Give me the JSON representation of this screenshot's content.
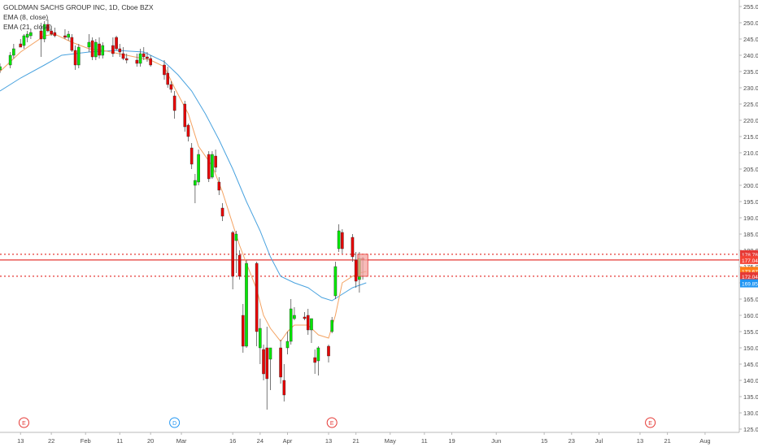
{
  "legend": {
    "title": "GOLDMAN SACHS GROUP INC, 1D, Cboe BZX",
    "ema_fast": "EMA (8, close)",
    "ema_slow": "EMA (21, close)"
  },
  "chart_data": {
    "type": "candlestick",
    "title": "GOLDMAN SACHS GROUP INC, 1D, Cboe BZX",
    "y_range": [
      126,
      257
    ],
    "y_ticks": [
      125,
      130,
      135,
      140,
      145,
      150,
      155,
      160,
      165,
      170,
      175,
      180,
      185,
      190,
      195,
      200,
      205,
      210,
      215,
      220,
      225,
      230,
      235,
      240,
      245,
      250,
      255
    ],
    "y_tick_labels": [
      "125.00",
      "130.00",
      "135.00",
      "140.00",
      "145.00",
      "150.00",
      "155.00",
      "160.00",
      "165.00",
      "170.00",
      "175.00",
      "180.00",
      "185.00",
      "190.00",
      "195.00",
      "200.00",
      "205.00",
      "210.00",
      "215.00",
      "220.00",
      "225.00",
      "230.00",
      "235.00",
      "240.00",
      "245.00",
      "250.00",
      "255.00"
    ],
    "x_tick_labels": [
      {
        "label": "13",
        "day": 0
      },
      {
        "label": "22",
        "day": 9
      },
      {
        "label": "Feb",
        "day": 19
      },
      {
        "label": "11",
        "day": 29
      },
      {
        "label": "20",
        "day": 38
      },
      {
        "label": "Mar",
        "day": 47
      },
      {
        "label": "16",
        "day": 62
      },
      {
        "label": "24",
        "day": 70
      },
      {
        "label": "Apr",
        "day": 78
      },
      {
        "label": "13",
        "day": 90
      },
      {
        "label": "21",
        "day": 98
      },
      {
        "label": "May",
        "day": 108
      },
      {
        "label": "11",
        "day": 118
      },
      {
        "label": "19",
        "day": 126
      },
      {
        "label": "Jun",
        "day": 139
      },
      {
        "label": "15",
        "day": 153
      },
      {
        "label": "23",
        "day": 161
      },
      {
        "label": "Jul",
        "day": 169
      },
      {
        "label": "13",
        "day": 181
      },
      {
        "label": "21",
        "day": 189
      },
      {
        "label": "Aug",
        "day": 200
      }
    ],
    "day_range": [
      -6,
      210
    ],
    "candles": [
      {
        "d": -6,
        "o": 235.5,
        "h": 237.5,
        "l": 234.5,
        "c": 236.5
      },
      {
        "d": -3,
        "o": 237.0,
        "h": 241.0,
        "l": 236.0,
        "c": 240.0
      },
      {
        "d": -2,
        "o": 240.0,
        "h": 243.5,
        "l": 239.0,
        "c": 242.0
      },
      {
        "d": 0,
        "o": 243.5,
        "h": 245.0,
        "l": 242.5,
        "c": 242.5
      },
      {
        "d": 1,
        "o": 243.0,
        "h": 246.5,
        "l": 242.0,
        "c": 246.0
      },
      {
        "d": 2,
        "o": 245.5,
        "h": 247.5,
        "l": 244.0,
        "c": 246.5
      },
      {
        "d": 3,
        "o": 246.0,
        "h": 248.0,
        "l": 245.0,
        "c": 247.0
      },
      {
        "d": 6,
        "o": 247.5,
        "h": 250.0,
        "l": 239.5,
        "c": 245.0
      },
      {
        "d": 7,
        "o": 245.0,
        "h": 250.5,
        "l": 244.0,
        "c": 249.5
      },
      {
        "d": 8,
        "o": 249.5,
        "h": 251.0,
        "l": 247.0,
        "c": 247.5
      },
      {
        "d": 9,
        "o": 247.5,
        "h": 249.0,
        "l": 246.0,
        "c": 246.5
      },
      {
        "d": 10,
        "o": 247.0,
        "h": 248.5,
        "l": 245.5,
        "c": 246.0
      },
      {
        "d": 13,
        "o": 246.0,
        "h": 248.0,
        "l": 245.0,
        "c": 245.5
      },
      {
        "d": 14,
        "o": 245.5,
        "h": 247.5,
        "l": 244.5,
        "c": 246.5
      },
      {
        "d": 15,
        "o": 245.5,
        "h": 246.5,
        "l": 241.0,
        "c": 241.5
      },
      {
        "d": 16,
        "o": 241.5,
        "h": 243.0,
        "l": 235.5,
        "c": 237.0
      },
      {
        "d": 17,
        "o": 237.0,
        "h": 243.5,
        "l": 236.0,
        "c": 242.5
      },
      {
        "d": 20,
        "o": 242.5,
        "h": 246.5,
        "l": 241.0,
        "c": 244.0
      },
      {
        "d": 21,
        "o": 244.5,
        "h": 245.5,
        "l": 238.5,
        "c": 239.5
      },
      {
        "d": 22,
        "o": 239.5,
        "h": 245.0,
        "l": 238.5,
        "c": 244.0
      },
      {
        "d": 23,
        "o": 243.5,
        "h": 245.5,
        "l": 239.0,
        "c": 240.0
      },
      {
        "d": 24,
        "o": 240.0,
        "h": 244.0,
        "l": 239.0,
        "c": 243.0
      },
      {
        "d": 27,
        "o": 243.0,
        "h": 245.5,
        "l": 239.5,
        "c": 240.5
      },
      {
        "d": 28,
        "o": 245.5,
        "h": 246.0,
        "l": 241.5,
        "c": 242.0
      },
      {
        "d": 29,
        "o": 242.0,
        "h": 243.5,
        "l": 239.5,
        "c": 241.0
      },
      {
        "d": 30,
        "o": 240.5,
        "h": 242.5,
        "l": 238.5,
        "c": 239.0
      },
      {
        "d": 31,
        "o": 239.0,
        "h": 240.5,
        "l": 237.5,
        "c": 238.5
      },
      {
        "d": 34,
        "o": 238.5,
        "h": 240.5,
        "l": 236.5,
        "c": 237.5
      },
      {
        "d": 35,
        "o": 237.5,
        "h": 242.0,
        "l": 236.5,
        "c": 240.5
      },
      {
        "d": 36,
        "o": 240.5,
        "h": 242.5,
        "l": 238.5,
        "c": 239.5
      },
      {
        "d": 37,
        "o": 239.5,
        "h": 241.0,
        "l": 238.0,
        "c": 239.0
      },
      {
        "d": 38,
        "o": 239.0,
        "h": 240.0,
        "l": 236.5,
        "c": 237.0
      },
      {
        "d": 42,
        "o": 237.0,
        "h": 238.5,
        "l": 232.5,
        "c": 234.0
      },
      {
        "d": 43,
        "o": 234.5,
        "h": 236.5,
        "l": 230.0,
        "c": 231.0
      },
      {
        "d": 44,
        "o": 231.0,
        "h": 232.0,
        "l": 228.5,
        "c": 229.5
      },
      {
        "d": 45,
        "o": 227.5,
        "h": 229.0,
        "l": 220.5,
        "c": 223.0
      },
      {
        "d": 48,
        "o": 225.0,
        "h": 226.0,
        "l": 216.5,
        "c": 218.0
      },
      {
        "d": 49,
        "o": 218.5,
        "h": 219.0,
        "l": 213.5,
        "c": 215.0
      },
      {
        "d": 50,
        "o": 211.5,
        "h": 213.0,
        "l": 205.0,
        "c": 206.5
      },
      {
        "d": 51,
        "o": 200.0,
        "h": 203.5,
        "l": 194.5,
        "c": 201.5
      },
      {
        "d": 52,
        "o": 201.0,
        "h": 211.0,
        "l": 200.0,
        "c": 209.5
      },
      {
        "d": 55,
        "o": 209.5,
        "h": 210.5,
        "l": 201.0,
        "c": 202.0
      },
      {
        "d": 56,
        "o": 202.5,
        "h": 210.5,
        "l": 202.0,
        "c": 209.5
      },
      {
        "d": 57,
        "o": 209.0,
        "h": 211.0,
        "l": 204.0,
        "c": 205.5
      },
      {
        "d": 58,
        "o": 201.0,
        "h": 202.5,
        "l": 197.0,
        "c": 198.5
      },
      {
        "d": 59,
        "o": 193.0,
        "h": 194.5,
        "l": 189.0,
        "c": 190.5
      },
      {
        "d": 62,
        "o": 185.5,
        "h": 186.0,
        "l": 168.0,
        "c": 172.0
      },
      {
        "d": 63,
        "o": 183.0,
        "h": 186.0,
        "l": 173.0,
        "c": 185.0
      },
      {
        "d": 64,
        "o": 178.5,
        "h": 180.0,
        "l": 171.0,
        "c": 172.0
      },
      {
        "d": 65,
        "o": 160.0,
        "h": 163.5,
        "l": 148.5,
        "c": 150.5
      },
      {
        "d": 66,
        "o": 150.5,
        "h": 177.0,
        "l": 150.0,
        "c": 176.0
      },
      {
        "d": 69,
        "o": 176.0,
        "h": 176.5,
        "l": 150.5,
        "c": 155.0
      },
      {
        "d": 70,
        "o": 150.0,
        "h": 159.0,
        "l": 145.0,
        "c": 156.0
      },
      {
        "d": 71,
        "o": 149.5,
        "h": 151.0,
        "l": 140.0,
        "c": 142.0
      },
      {
        "d": 72,
        "o": 150.0,
        "h": 156.5,
        "l": 131.0,
        "c": 140.5
      },
      {
        "d": 73,
        "o": 146.5,
        "h": 150.0,
        "l": 137.0,
        "c": 150.0
      },
      {
        "d": 76,
        "o": 150.0,
        "h": 152.5,
        "l": 139.0,
        "c": 141.0
      },
      {
        "d": 77,
        "o": 140.0,
        "h": 145.0,
        "l": 133.5,
        "c": 135.5
      },
      {
        "d": 78,
        "o": 150.0,
        "h": 155.0,
        "l": 148.0,
        "c": 152.0
      },
      {
        "d": 79,
        "o": 152.0,
        "h": 165.0,
        "l": 151.0,
        "c": 162.0
      },
      {
        "d": 80,
        "o": 159.0,
        "h": 162.5,
        "l": 158.5,
        "c": 160.0
      },
      {
        "d": 83,
        "o": 159.5,
        "h": 161.0,
        "l": 158.5,
        "c": 159.0
      },
      {
        "d": 84,
        "o": 160.0,
        "h": 162.0,
        "l": 154.0,
        "c": 155.5
      },
      {
        "d": 85,
        "o": 155.5,
        "h": 158.0,
        "l": 151.5,
        "c": 159.0
      },
      {
        "d": 86,
        "o": 147.0,
        "h": 149.5,
        "l": 142.0,
        "c": 145.5
      },
      {
        "d": 87,
        "o": 146.0,
        "h": 150.5,
        "l": 141.5,
        "c": 150.0
      },
      {
        "d": 90,
        "o": 150.5,
        "h": 151.0,
        "l": 145.5,
        "c": 147.5
      },
      {
        "d": 91,
        "o": 155.0,
        "h": 159.5,
        "l": 154.5,
        "c": 158.5
      },
      {
        "d": 92,
        "o": 166.0,
        "h": 176.5,
        "l": 165.0,
        "c": 175.0
      },
      {
        "d": 93,
        "o": 180.5,
        "h": 188.0,
        "l": 179.5,
        "c": 186.0
      },
      {
        "d": 94,
        "o": 185.5,
        "h": 186.5,
        "l": 179.0,
        "c": 180.5
      },
      {
        "d": 97,
        "o": 184.0,
        "h": 185.0,
        "l": 176.5,
        "c": 178.0
      },
      {
        "d": 98,
        "o": 177.0,
        "h": 179.5,
        "l": 168.5,
        "c": 170.5
      },
      {
        "d": 99,
        "o": 171.0,
        "h": 179.5,
        "l": 167.0,
        "c": 177.5
      },
      {
        "d": 100,
        "o": 177.5,
        "h": 178.0,
        "l": 171.0,
        "c": 177.0
      }
    ],
    "ema_8": [
      [
        -6,
        235.0
      ],
      [
        0,
        241.0
      ],
      [
        7,
        246.0
      ],
      [
        10,
        246.5
      ],
      [
        15,
        244.0
      ],
      [
        20,
        242.0
      ],
      [
        24,
        241.5
      ],
      [
        31,
        240.0
      ],
      [
        38,
        238.5
      ],
      [
        42,
        236.5
      ],
      [
        45,
        230.0
      ],
      [
        49,
        222.0
      ],
      [
        52,
        212.0
      ],
      [
        56,
        206.0
      ],
      [
        59,
        198.0
      ],
      [
        62,
        188.0
      ],
      [
        64,
        181.5
      ],
      [
        66,
        176.0
      ],
      [
        69,
        168.0
      ],
      [
        71,
        160.0
      ],
      [
        73,
        156.0
      ],
      [
        76,
        152.0
      ],
      [
        78,
        155.0
      ],
      [
        80,
        157.0
      ],
      [
        84,
        157.0
      ],
      [
        87,
        154.0
      ],
      [
        90,
        153.0
      ],
      [
        92,
        160.0
      ],
      [
        94,
        170.0
      ],
      [
        97,
        172.0
      ],
      [
        99,
        173.0
      ],
      [
        101,
        173.5
      ]
    ],
    "ema_21": [
      [
        -6,
        229.0
      ],
      [
        0,
        233.0
      ],
      [
        7,
        237.0
      ],
      [
        12,
        240.0
      ],
      [
        20,
        241.0
      ],
      [
        28,
        241.5
      ],
      [
        36,
        241.0
      ],
      [
        42,
        238.0
      ],
      [
        46,
        234.0
      ],
      [
        50,
        229.0
      ],
      [
        54,
        222.0
      ],
      [
        58,
        214.0
      ],
      [
        62,
        205.0
      ],
      [
        66,
        195.0
      ],
      [
        70,
        186.0
      ],
      [
        73,
        178.0
      ],
      [
        76,
        172.0
      ],
      [
        80,
        170.0
      ],
      [
        84,
        168.5
      ],
      [
        88,
        165.5
      ],
      [
        91,
        164.5
      ],
      [
        94,
        166.5
      ],
      [
        97,
        168.5
      ],
      [
        101,
        170.0
      ]
    ],
    "horizontal_levels": [
      {
        "value": 178.78,
        "style": "dotted",
        "color": "#e53935",
        "label": "178.78"
      },
      {
        "value": 177.04,
        "style": "solid",
        "color": "#e53935",
        "label": "177.04"
      },
      {
        "value": 172.04,
        "style": "dotted",
        "color": "#e53935",
        "label": "172.04"
      }
    ],
    "price_tags": [
      {
        "value": 178.78,
        "label": "178.78",
        "color": "#e53935"
      },
      {
        "value": 177.04,
        "label": "177.04",
        "color": "#f44336"
      },
      {
        "value": 173.67,
        "label": "173.67",
        "color": "#ff7d18"
      },
      {
        "value": 172.04,
        "label": "172.04",
        "color": "#e53935"
      },
      {
        "value": 169.85,
        "label": "169.85",
        "color": "#2196f3"
      }
    ],
    "highlight_box": {
      "day_start": 99,
      "day_end": 101,
      "top": 178.8,
      "bottom": 172.0,
      "color": "#f4a4a0"
    },
    "event_markers": [
      {
        "day": 1,
        "label": "E",
        "color": "#e53935"
      },
      {
        "day": 45,
        "label": "D",
        "color": "#2196f3"
      },
      {
        "day": 91,
        "label": "E",
        "color": "#e53935"
      },
      {
        "day": 184,
        "label": "E",
        "color": "#e53935"
      }
    ],
    "colors": {
      "up": "#00e600",
      "down": "#e60000",
      "ema_8": "#f4a261",
      "ema_21": "#4aa3df",
      "axis_text": "#4a4a4a"
    }
  }
}
